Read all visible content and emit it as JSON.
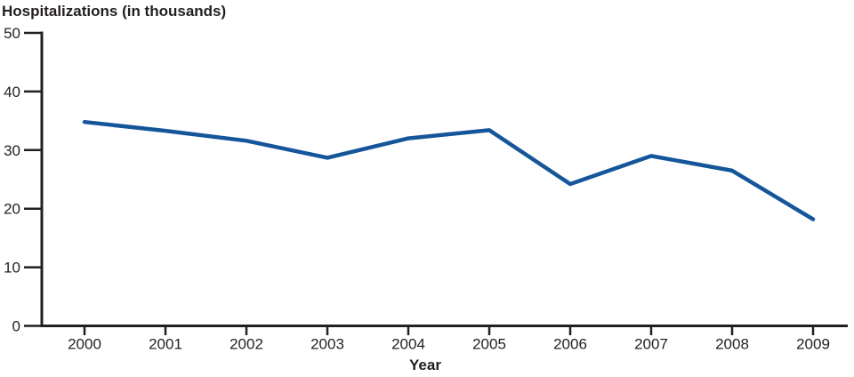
{
  "chart_data": {
    "type": "line",
    "title": "Hospitalizations (in thousands)",
    "xlabel": "Year",
    "ylabel": "",
    "categories": [
      "2000",
      "2001",
      "2002",
      "2003",
      "2004",
      "2005",
      "2006",
      "2007",
      "2008",
      "2009"
    ],
    "values": [
      34.8,
      33.3,
      31.6,
      28.7,
      32.0,
      33.4,
      24.2,
      29.0,
      26.5,
      18.2
    ],
    "ylim": [
      0,
      50
    ],
    "yticks": [
      0,
      10,
      20,
      30,
      40,
      50
    ],
    "grid": false,
    "legend": false,
    "series_name": "Hospitalizations",
    "colors": {
      "line": "#15569B",
      "axis": "#231F20",
      "text": "#231F20"
    }
  }
}
